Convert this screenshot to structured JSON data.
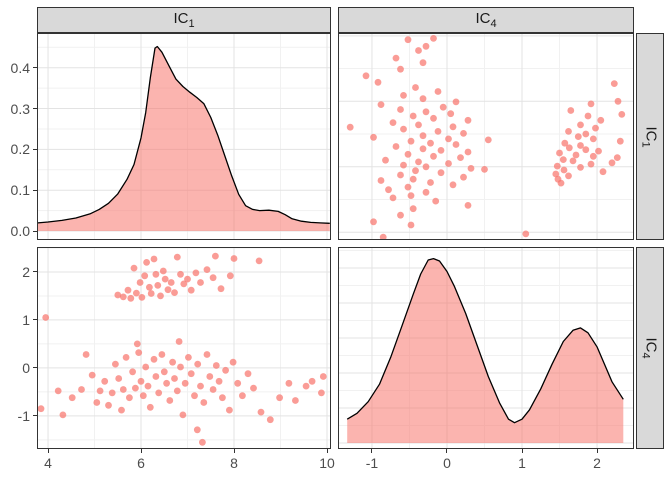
{
  "figure": {
    "background": "#ffffff",
    "strip_fill": "#d9d9d9",
    "strip_border": "#333333",
    "strip_text_color": "#1a1a1a",
    "panel_border": "#333333",
    "grid_major_color": "#e3e3e3",
    "grid_minor_color": "#f1f1f1",
    "axis_text_color": "#4d4d4d",
    "tick_color": "#333333",
    "density_fill": "rgba(248,118,109,0.55)",
    "density_stroke": "#000000",
    "point_color": "#f8766d",
    "point_opacity": 0.72
  },
  "facets": {
    "cols": [
      {
        "base": "IC",
        "sub": "1"
      },
      {
        "base": "IC",
        "sub": "4"
      }
    ],
    "rows": [
      {
        "base": "IC",
        "sub": "1"
      },
      {
        "base": "IC",
        "sub": "4"
      }
    ]
  },
  "chart_data": {
    "type": "scatter",
    "matrix_style": "ggpairs scatterplot matrix, theme_bw, densities on diagonal",
    "variables": [
      "IC1",
      "IC4"
    ],
    "n_points": 107,
    "legend": "none",
    "grid": "on",
    "axes": {
      "IC1": {
        "domain": [
          3.763,
          10.086
        ],
        "majors": [
          4,
          6,
          8,
          10
        ],
        "major_labels": [
          "4",
          "6",
          "8",
          "10"
        ],
        "minors": [
          5,
          7,
          9
        ]
      },
      "IC4_h": {
        "domain": [
          -1.453,
          2.493
        ],
        "majors": [
          -1,
          0,
          1,
          2
        ],
        "major_labels": [
          "-1",
          "0",
          "1",
          "2"
        ],
        "minors": [
          -0.5,
          0.5,
          1.5
        ]
      },
      "IC4_v": {
        "domain": [
          -1.69,
          2.52
        ],
        "majors": [
          2,
          1,
          0,
          -1
        ],
        "major_labels": [
          "2",
          "1",
          "0",
          "-1"
        ],
        "minors": [
          2.5,
          1.5,
          0.5,
          -0.5,
          -1.5
        ]
      },
      "density_IC1": {
        "domain": [
          -0.022,
          0.485
        ],
        "majors": [
          0.0,
          0.1,
          0.2,
          0.3,
          0.4
        ],
        "major_labels": [
          "0.0",
          "0.1",
          "0.2",
          "0.3",
          "0.4"
        ],
        "minors": [
          0.05,
          0.15,
          0.25,
          0.35,
          0.45
        ]
      },
      "density_IC4": {
        "domain": [
          -0.017,
          0.56
        ],
        "majors": [
          0.0,
          0.1,
          0.2,
          0.3,
          0.4,
          0.5
        ],
        "major_labels": [],
        "minors": [
          0.05,
          0.15,
          0.25,
          0.35,
          0.45,
          0.55
        ]
      }
    },
    "panels": [
      {
        "row": 0,
        "col": 0,
        "kind": "density",
        "x_axis": "IC1",
        "y_axis": "density_IC1"
      },
      {
        "row": 0,
        "col": 1,
        "kind": "scatter",
        "x_axis": "IC4_h",
        "y_axis": "IC1"
      },
      {
        "row": 1,
        "col": 0,
        "kind": "scatter",
        "x_axis": "IC1",
        "y_axis": "IC4_v"
      },
      {
        "row": 1,
        "col": 1,
        "kind": "density",
        "x_axis": "IC4_h",
        "y_axis": "density_IC4"
      }
    ],
    "density_IC1_curve": [
      [
        3.78,
        0.02
      ],
      [
        4.0,
        0.022
      ],
      [
        4.3,
        0.026
      ],
      [
        4.6,
        0.032
      ],
      [
        4.9,
        0.042
      ],
      [
        5.1,
        0.053
      ],
      [
        5.3,
        0.068
      ],
      [
        5.5,
        0.091
      ],
      [
        5.7,
        0.127
      ],
      [
        5.85,
        0.163
      ],
      [
        6.0,
        0.228
      ],
      [
        6.1,
        0.29
      ],
      [
        6.2,
        0.375
      ],
      [
        6.3,
        0.448
      ],
      [
        6.35,
        0.452
      ],
      [
        6.45,
        0.438
      ],
      [
        6.6,
        0.405
      ],
      [
        6.75,
        0.372
      ],
      [
        6.9,
        0.354
      ],
      [
        7.05,
        0.34
      ],
      [
        7.2,
        0.327
      ],
      [
        7.35,
        0.312
      ],
      [
        7.5,
        0.278
      ],
      [
        7.65,
        0.235
      ],
      [
        7.8,
        0.185
      ],
      [
        7.95,
        0.135
      ],
      [
        8.1,
        0.09
      ],
      [
        8.25,
        0.062
      ],
      [
        8.4,
        0.053
      ],
      [
        8.55,
        0.05
      ],
      [
        8.75,
        0.051
      ],
      [
        8.95,
        0.048
      ],
      [
        9.1,
        0.04
      ],
      [
        9.25,
        0.03
      ],
      [
        9.45,
        0.024
      ],
      [
        9.65,
        0.021
      ],
      [
        9.85,
        0.02
      ],
      [
        10.06,
        0.019
      ]
    ],
    "density_IC4_curve": [
      [
        -1.33,
        0.068
      ],
      [
        -1.2,
        0.085
      ],
      [
        -1.05,
        0.118
      ],
      [
        -0.9,
        0.168
      ],
      [
        -0.75,
        0.245
      ],
      [
        -0.6,
        0.335
      ],
      [
        -0.45,
        0.425
      ],
      [
        -0.35,
        0.483
      ],
      [
        -0.25,
        0.523
      ],
      [
        -0.18,
        0.527
      ],
      [
        -0.1,
        0.52
      ],
      [
        0.0,
        0.49
      ],
      [
        0.1,
        0.447
      ],
      [
        0.25,
        0.37
      ],
      [
        0.4,
        0.28
      ],
      [
        0.55,
        0.19
      ],
      [
        0.7,
        0.115
      ],
      [
        0.82,
        0.068
      ],
      [
        0.9,
        0.058
      ],
      [
        1.0,
        0.068
      ],
      [
        1.1,
        0.095
      ],
      [
        1.25,
        0.155
      ],
      [
        1.4,
        0.225
      ],
      [
        1.55,
        0.29
      ],
      [
        1.68,
        0.322
      ],
      [
        1.78,
        0.329
      ],
      [
        1.88,
        0.315
      ],
      [
        2.0,
        0.275
      ],
      [
        2.1,
        0.225
      ],
      [
        2.2,
        0.175
      ],
      [
        2.35,
        0.125
      ]
    ],
    "points_IC1_IC4": [
      [
        5.5,
        1.52
      ],
      [
        5.62,
        1.48
      ],
      [
        5.72,
        1.62
      ],
      [
        5.78,
        1.45
      ],
      [
        5.85,
        2.08
      ],
      [
        5.9,
        1.56
      ],
      [
        5.98,
        1.78
      ],
      [
        6.02,
        1.47
      ],
      [
        6.08,
        1.92
      ],
      [
        6.12,
        2.2
      ],
      [
        6.18,
        1.68
      ],
      [
        6.22,
        1.55
      ],
      [
        6.28,
        2.27
      ],
      [
        6.32,
        1.95
      ],
      [
        6.36,
        1.72
      ],
      [
        6.42,
        1.5
      ],
      [
        6.48,
        2.02
      ],
      [
        6.52,
        1.85
      ],
      [
        6.58,
        1.63
      ],
      [
        6.65,
        1.78
      ],
      [
        6.72,
        1.57
      ],
      [
        6.78,
        2.31
      ],
      [
        6.85,
        1.95
      ],
      [
        6.92,
        1.75
      ],
      [
        7.0,
        1.85
      ],
      [
        7.08,
        1.62
      ],
      [
        7.18,
        1.98
      ],
      [
        7.28,
        1.78
      ],
      [
        7.42,
        2.05
      ],
      [
        7.55,
        1.88
      ],
      [
        7.6,
        2.33
      ],
      [
        7.72,
        1.65
      ],
      [
        7.92,
        1.92
      ],
      [
        8.0,
        2.28
      ],
      [
        8.54,
        2.23
      ],
      [
        4.22,
        -0.48
      ],
      [
        4.32,
        -0.98
      ],
      [
        4.52,
        -0.62
      ],
      [
        4.72,
        -0.45
      ],
      [
        4.82,
        0.28
      ],
      [
        4.95,
        -0.15
      ],
      [
        5.05,
        -0.72
      ],
      [
        5.12,
        -0.48
      ],
      [
        5.22,
        -0.28
      ],
      [
        5.3,
        -0.78
      ],
      [
        5.38,
        -0.52
      ],
      [
        5.45,
        0.08
      ],
      [
        5.52,
        -0.22
      ],
      [
        5.58,
        -0.88
      ],
      [
        5.62,
        -0.45
      ],
      [
        5.68,
        0.22
      ],
      [
        5.75,
        -0.62
      ],
      [
        5.82,
        -0.08
      ],
      [
        5.88,
        -0.42
      ],
      [
        5.92,
        0.5
      ],
      [
        5.95,
        0.32
      ],
      [
        6.0,
        -0.28
      ],
      [
        6.05,
        -0.58
      ],
      [
        6.1,
        0.02
      ],
      [
        6.15,
        -0.38
      ],
      [
        6.2,
        -0.82
      ],
      [
        6.28,
        0.18
      ],
      [
        6.32,
        -0.18
      ],
      [
        6.38,
        -0.52
      ],
      [
        6.45,
        0.28
      ],
      [
        6.5,
        -0.08
      ],
      [
        6.55,
        -0.32
      ],
      [
        6.62,
        -0.68
      ],
      [
        6.68,
        0.12
      ],
      [
        6.72,
        -0.22
      ],
      [
        6.78,
        -0.48
      ],
      [
        6.82,
        0.55
      ],
      [
        6.85,
        0.02
      ],
      [
        6.9,
        -0.98
      ],
      [
        6.95,
        -0.32
      ],
      [
        7.02,
        0.22
      ],
      [
        7.08,
        -0.12
      ],
      [
        7.15,
        -0.58
      ],
      [
        7.21,
        -1.29
      ],
      [
        7.22,
        0.08
      ],
      [
        7.28,
        -0.38
      ],
      [
        7.35,
        -0.72
      ],
      [
        7.42,
        0.28
      ],
      [
        7.48,
        -0.18
      ],
      [
        7.55,
        -0.45
      ],
      [
        7.62,
        0.05
      ],
      [
        7.68,
        -0.28
      ],
      [
        7.75,
        -0.62
      ],
      [
        7.82,
        -0.05
      ],
      [
        7.9,
        -0.88
      ],
      [
        7.98,
        0.12
      ],
      [
        8.08,
        -0.32
      ],
      [
        8.18,
        -0.58
      ],
      [
        8.3,
        -0.12
      ],
      [
        8.42,
        -0.42
      ],
      [
        8.58,
        -0.92
      ],
      [
        8.78,
        -1.08
      ],
      [
        8.98,
        -0.62
      ],
      [
        9.18,
        -0.32
      ],
      [
        9.32,
        -0.68
      ],
      [
        9.55,
        -0.38
      ],
      [
        9.68,
        -0.28
      ],
      [
        9.88,
        -0.52
      ],
      [
        9.92,
        -0.18
      ],
      [
        3.95,
        1.05
      ],
      [
        7.32,
        -1.55
      ],
      [
        3.85,
        -0.85
      ]
    ]
  }
}
